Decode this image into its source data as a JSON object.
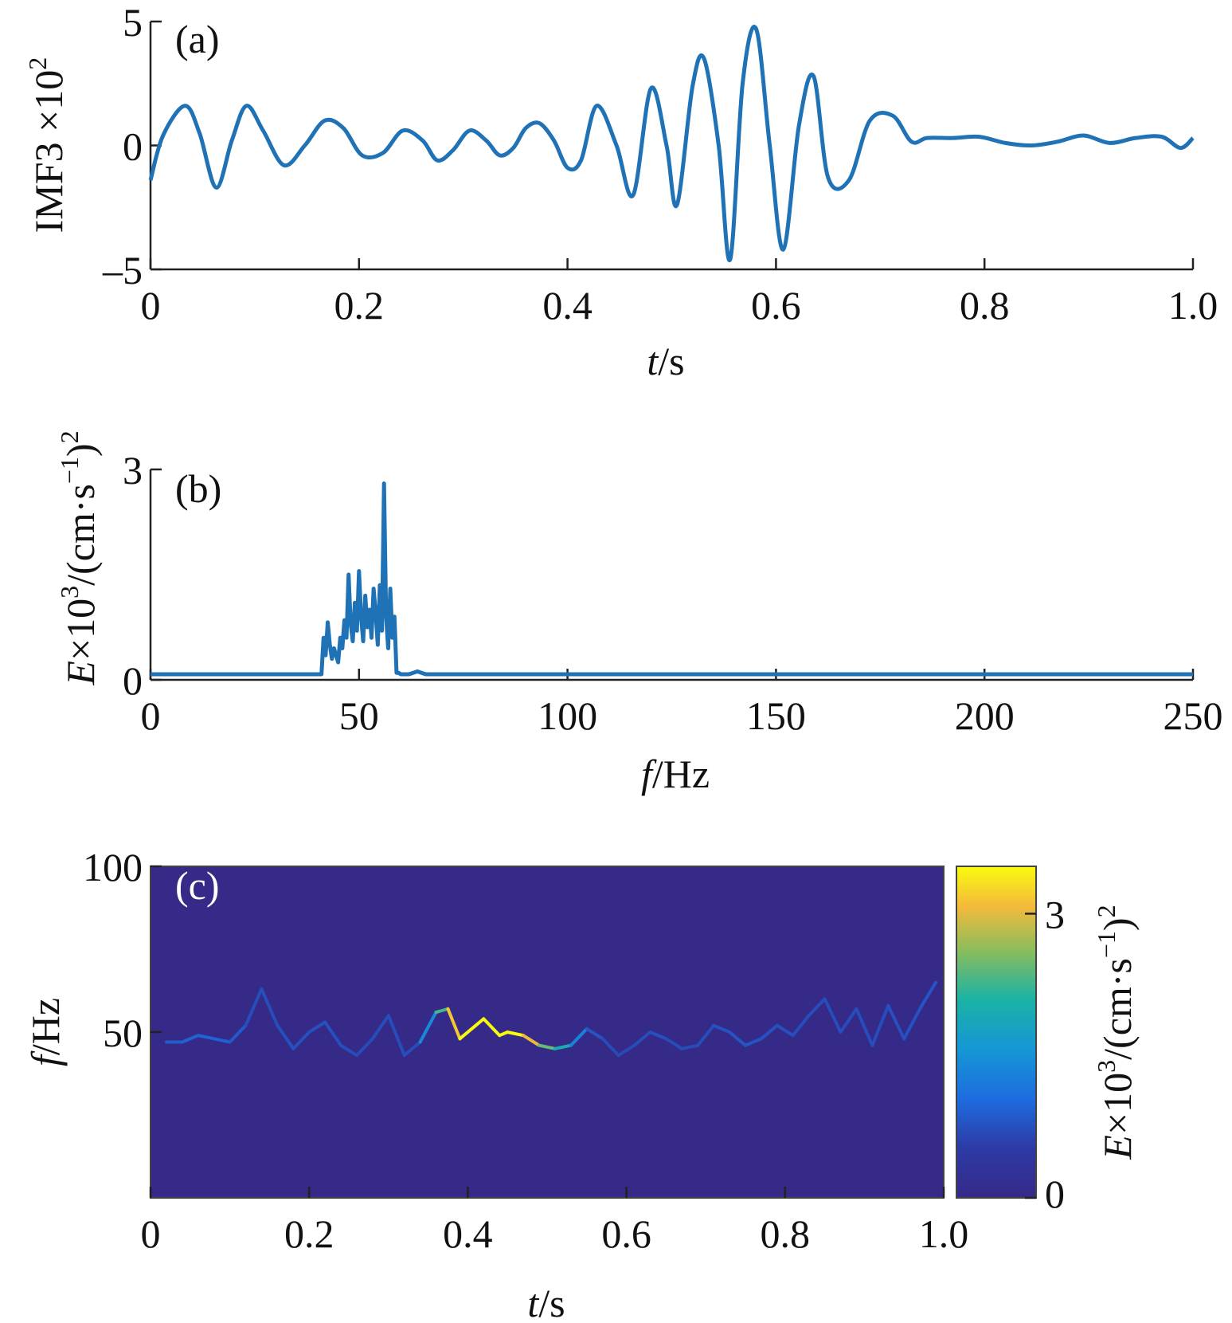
{
  "chart_data": [
    {
      "panel": "(a)",
      "type": "line",
      "xlabel_italic": "t",
      "xlabel_rest": "/s",
      "ylabel": "IMF3 ×10",
      "ylabel_sup": "2",
      "xlim": [
        0,
        1.0
      ],
      "ylim": [
        -5,
        5
      ],
      "xticks": [
        "0",
        "0.2",
        "0.4",
        "0.6",
        "0.8",
        "1.0"
      ],
      "yticks": [
        "–5",
        "0",
        "5"
      ],
      "line_color": "#1f72b6",
      "series": [
        {
          "x": [
            0,
            0.012,
            0.033,
            0.047,
            0.063,
            0.078,
            0.092,
            0.108,
            0.128,
            0.148,
            0.167,
            0.185,
            0.203,
            0.223,
            0.242,
            0.261,
            0.275,
            0.29,
            0.306,
            0.322,
            0.335,
            0.348,
            0.36,
            0.373,
            0.387,
            0.4,
            0.413,
            0.428,
            0.447,
            0.463,
            0.48,
            0.495,
            0.505,
            0.52,
            0.531,
            0.545,
            0.556,
            0.568,
            0.581,
            0.594,
            0.607,
            0.622,
            0.636,
            0.65,
            0.67,
            0.69,
            0.712,
            0.73,
            0.745,
            0.77,
            0.795,
            0.82,
            0.845,
            0.87,
            0.895,
            0.92,
            0.945,
            0.97,
            0.988,
            1.0
          ],
          "y": [
            -1.4,
            0.4,
            1.6,
            0.5,
            -1.7,
            0.2,
            1.6,
            0.6,
            -0.8,
            0.0,
            1.0,
            0.7,
            -0.4,
            -0.3,
            0.6,
            0.2,
            -0.6,
            -0.2,
            0.6,
            0.2,
            -0.4,
            -0.1,
            0.7,
            0.9,
            0.2,
            -0.9,
            -0.6,
            1.6,
            0.0,
            -2.0,
            2.3,
            0.0,
            -2.4,
            2.4,
            3.5,
            0.0,
            -4.6,
            2.5,
            4.7,
            0.0,
            -4.2,
            0.8,
            2.8,
            -1.3,
            -1.4,
            1.0,
            1.2,
            0.15,
            0.3,
            0.3,
            0.35,
            0.1,
            0.0,
            0.15,
            0.4,
            0.1,
            0.3,
            0.35,
            -0.1,
            0.3
          ]
        }
      ]
    },
    {
      "panel": "(b)",
      "type": "line",
      "xlabel_italic": "f",
      "xlabel_rest": "/Hz",
      "ylabel_italic": "E",
      "ylabel": "×10",
      "ylabel_sup": "3",
      "ylabel_after": "/(cm·s",
      "ylabel_sup2": "−1",
      "ylabel_end": ")",
      "ylabel_sup3": "2",
      "xlim": [
        0,
        250
      ],
      "ylim": [
        0,
        3
      ],
      "xticks": [
        "0",
        "50",
        "100",
        "150",
        "200",
        "250"
      ],
      "yticks": [
        "0",
        "3"
      ],
      "line_color": "#1f72b6",
      "series": [
        {
          "x": [
            0,
            41,
            41.5,
            42,
            42.5,
            43,
            43.5,
            44,
            45,
            45.5,
            46,
            46.5,
            47,
            47.5,
            48,
            48.5,
            49,
            49.5,
            50,
            50.5,
            51,
            51.5,
            52,
            52.5,
            53,
            53.5,
            54,
            54.5,
            55,
            55.5,
            56,
            56.5,
            57,
            57.5,
            58,
            58.5,
            59,
            59.5,
            60,
            62,
            64,
            65,
            66,
            70,
            250
          ],
          "y": [
            0.08,
            0.08,
            0.6,
            0.35,
            0.82,
            0.5,
            0.3,
            0.45,
            0.25,
            0.6,
            0.45,
            0.85,
            0.6,
            1.5,
            0.8,
            0.55,
            1.1,
            0.7,
            1.55,
            0.9,
            0.55,
            1.2,
            0.75,
            1.0,
            0.6,
            1.3,
            0.95,
            0.5,
            1.35,
            0.7,
            2.8,
            0.9,
            0.45,
            1.3,
            0.6,
            0.9,
            0.1,
            0.1,
            0.08,
            0.08,
            0.12,
            0.1,
            0.08,
            0.08,
            0.08
          ]
        }
      ]
    },
    {
      "panel": "(c)",
      "type": "heatmap",
      "xlabel_italic": "t",
      "xlabel_rest": "/s",
      "ylabel_italic": "f",
      "ylabel_rest": "/Hz",
      "xlim": [
        0,
        1.0
      ],
      "ylim": [
        0,
        100
      ],
      "xticks": [
        "0",
        "0.2",
        "0.4",
        "0.6",
        "0.8",
        "1.0"
      ],
      "yticks": [
        "50",
        "100"
      ],
      "background_color": "#352a87",
      "colorbar": {
        "ticks": [
          "0",
          "3"
        ],
        "range": [
          0,
          3.5
        ],
        "label_italic": "E",
        "label": "×10",
        "label_sup": "3",
        "label_after": "/(cm·s",
        "label_sup2": "−1",
        "label_end": ")",
        "label_sup3": "2"
      },
      "ridge": {
        "t": [
          0.02,
          0.04,
          0.06,
          0.08,
          0.1,
          0.12,
          0.14,
          0.16,
          0.18,
          0.2,
          0.22,
          0.24,
          0.26,
          0.28,
          0.3,
          0.32,
          0.34,
          0.36,
          0.375,
          0.39,
          0.41,
          0.42,
          0.44,
          0.45,
          0.47,
          0.49,
          0.51,
          0.53,
          0.55,
          0.57,
          0.59,
          0.61,
          0.63,
          0.65,
          0.67,
          0.69,
          0.71,
          0.73,
          0.75,
          0.77,
          0.79,
          0.81,
          0.83,
          0.85,
          0.87,
          0.89,
          0.91,
          0.93,
          0.95,
          0.97,
          0.99
        ],
        "f": [
          47,
          47,
          49,
          48,
          47,
          52,
          63,
          52,
          45,
          50,
          53,
          46,
          43,
          48,
          55,
          43,
          47,
          56,
          57,
          48,
          52,
          54,
          49,
          50,
          49,
          46,
          45,
          46,
          51,
          48,
          43,
          46,
          50,
          48,
          45,
          46,
          52,
          50,
          46,
          48,
          52,
          49,
          55,
          60,
          50,
          57,
          46,
          58,
          48,
          57,
          65
        ],
        "energy": [
          0.3,
          0.35,
          0.4,
          0.4,
          0.35,
          0.2,
          0.15,
          0.2,
          0.2,
          0.2,
          0.2,
          0.2,
          0.15,
          0.15,
          0.2,
          0.15,
          0.2,
          1.5,
          2.0,
          3.2,
          3.1,
          3.3,
          3.0,
          3.2,
          2.8,
          2.2,
          1.6,
          1.2,
          0.3,
          0.2,
          0.1,
          0.15,
          0.2,
          0.2,
          0.15,
          0.15,
          0.2,
          0.25,
          0.25,
          0.25,
          0.2,
          0.2,
          0.15,
          0.2,
          0.15,
          0.2,
          0.15,
          0.2,
          0.2,
          0.25,
          0.25
        ]
      }
    }
  ]
}
